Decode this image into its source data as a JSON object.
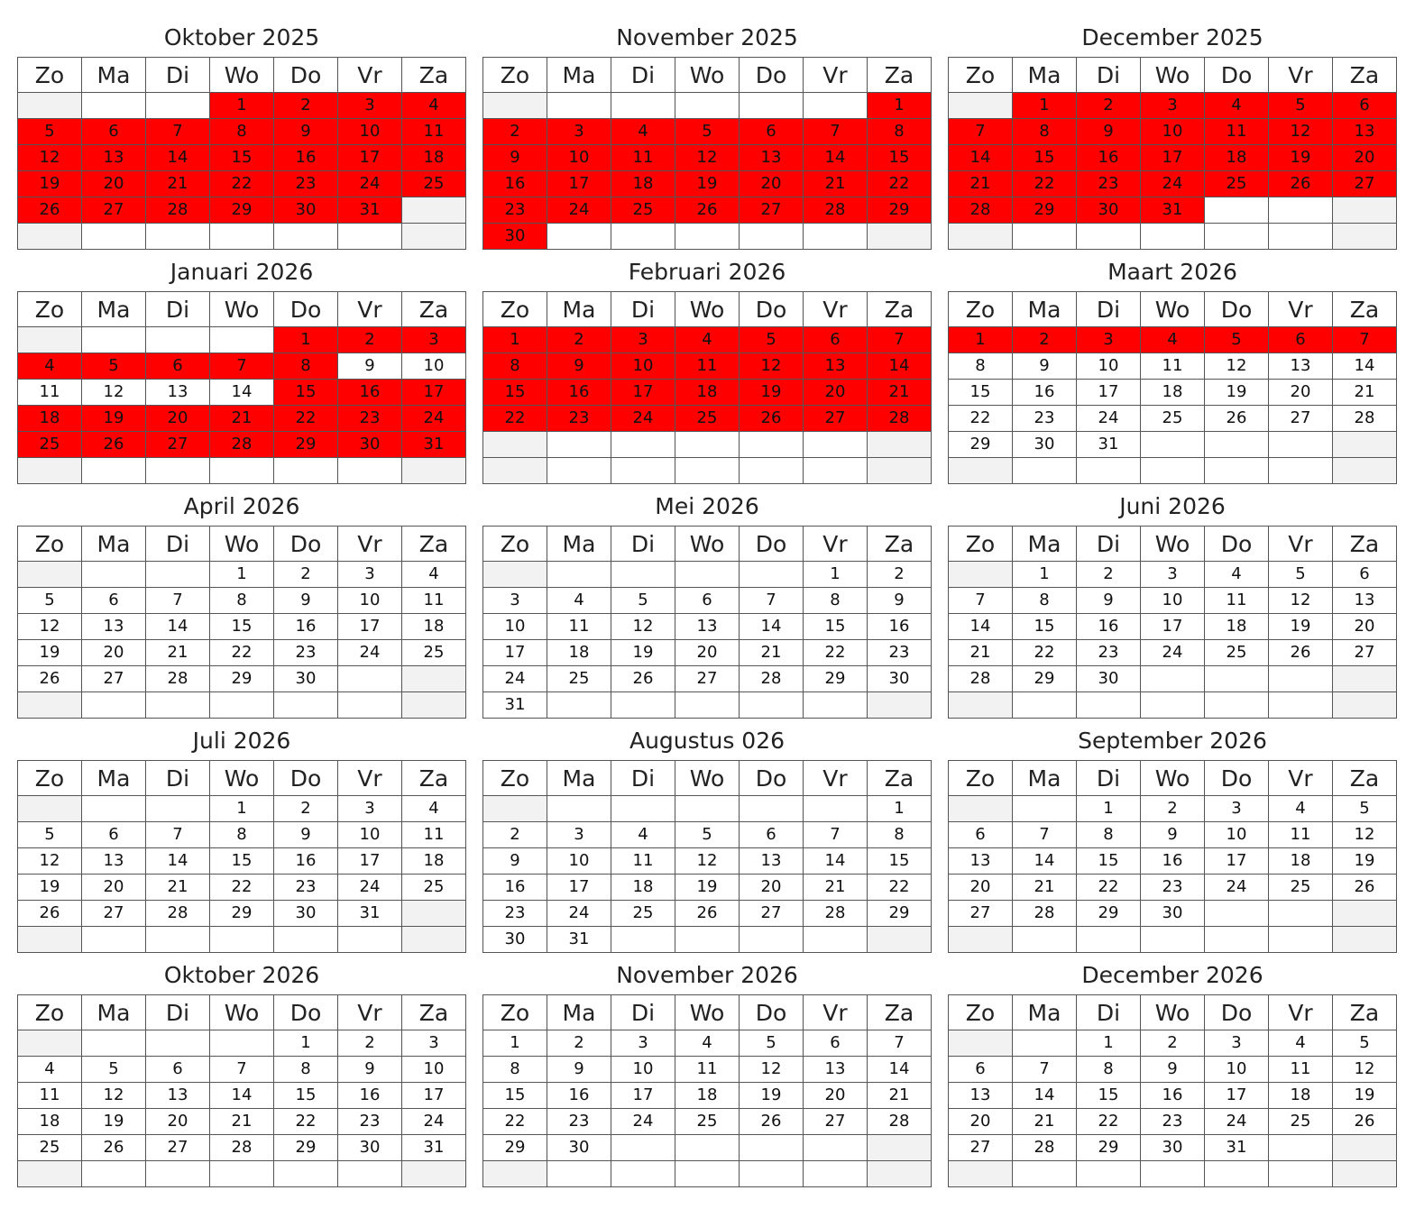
{
  "weekdays": [
    "Zo",
    "Ma",
    "Di",
    "Wo",
    "Do",
    "Vr",
    "Za"
  ],
  "colors": {
    "booked": "#ff0000",
    "weekend_empty": "#f2f2f2",
    "grid_line": "#555555"
  },
  "months": [
    {
      "title": "Oktober 2025",
      "start_weekday": 3,
      "days": 31,
      "booked": [
        1,
        2,
        3,
        4,
        5,
        6,
        7,
        8,
        9,
        10,
        11,
        12,
        13,
        14,
        15,
        16,
        17,
        18,
        19,
        20,
        21,
        22,
        23,
        24,
        25,
        26,
        27,
        28,
        29,
        30,
        31
      ]
    },
    {
      "title": "November 2025",
      "start_weekday": 6,
      "days": 30,
      "booked": [
        1,
        2,
        3,
        4,
        5,
        6,
        7,
        8,
        9,
        10,
        11,
        12,
        13,
        14,
        15,
        16,
        17,
        18,
        19,
        20,
        21,
        22,
        23,
        24,
        25,
        26,
        27,
        28,
        29,
        30
      ]
    },
    {
      "title": "December 2025",
      "start_weekday": 1,
      "days": 31,
      "booked": [
        1,
        2,
        3,
        4,
        5,
        6,
        7,
        8,
        9,
        10,
        11,
        12,
        13,
        14,
        15,
        16,
        17,
        18,
        19,
        20,
        21,
        22,
        23,
        24,
        25,
        26,
        27,
        28,
        29,
        30,
        31
      ]
    },
    {
      "title": "Januari 2026",
      "start_weekday": 4,
      "days": 31,
      "booked": [
        1,
        2,
        3,
        4,
        5,
        6,
        7,
        8,
        15,
        16,
        17,
        18,
        19,
        20,
        21,
        22,
        23,
        24,
        25,
        26,
        27,
        28,
        29,
        30,
        31
      ]
    },
    {
      "title": "Februari 2026",
      "start_weekday": 0,
      "days": 28,
      "booked": [
        1,
        2,
        3,
        4,
        5,
        6,
        7,
        8,
        9,
        10,
        11,
        12,
        13,
        14,
        15,
        16,
        17,
        18,
        19,
        20,
        21,
        22,
        23,
        24,
        25,
        26,
        27,
        28
      ]
    },
    {
      "title": "Maart 2026",
      "start_weekday": 0,
      "days": 31,
      "booked": [
        1,
        2,
        3,
        4,
        5,
        6,
        7
      ]
    },
    {
      "title": "April 2026",
      "start_weekday": 3,
      "days": 30,
      "booked": []
    },
    {
      "title": "Mei 2026",
      "start_weekday": 5,
      "days": 31,
      "booked": []
    },
    {
      "title": "Juni 2026",
      "start_weekday": 1,
      "days": 30,
      "booked": []
    },
    {
      "title": "Juli 2026",
      "start_weekday": 3,
      "days": 31,
      "booked": []
    },
    {
      "title": "Augustus 026",
      "start_weekday": 6,
      "days": 31,
      "booked": []
    },
    {
      "title": "September 2026",
      "start_weekday": 2,
      "days": 30,
      "booked": []
    },
    {
      "title": "Oktober 2026",
      "start_weekday": 4,
      "days": 31,
      "booked": []
    },
    {
      "title": "November 2026",
      "start_weekday": 0,
      "days": 30,
      "booked": []
    },
    {
      "title": "December 2026",
      "start_weekday": 2,
      "days": 31,
      "booked": []
    }
  ]
}
